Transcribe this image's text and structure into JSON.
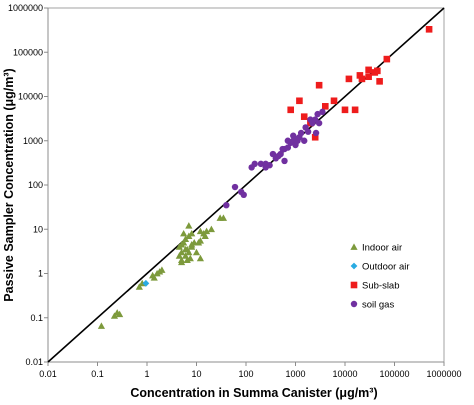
{
  "chart_data": {
    "type": "scatter",
    "xlabel": "Concentration in Summa Canister (μg/m³)",
    "ylabel": "Passive Sampler Concentration (μg/m³)",
    "x_scale": "log",
    "y_scale": "log",
    "xlim": [
      0.01,
      1000000
    ],
    "ylim": [
      0.01,
      1000000
    ],
    "x_ticks": [
      "0.01",
      "0.1",
      "1",
      "10",
      "100",
      "1000",
      "10000",
      "100000",
      "1000000"
    ],
    "y_ticks": [
      "0.01",
      "0.1",
      "1",
      "10",
      "100",
      "1000",
      "10000",
      "100000",
      "1000000"
    ],
    "grid": false,
    "legend_position": "right",
    "reference_line": {
      "type": "1:1",
      "color": "#000000"
    },
    "series": [
      {
        "name": "Indoor air",
        "marker": "triangle",
        "color": "#7d9a3c",
        "points": [
          [
            0.12,
            0.065
          ],
          [
            0.22,
            0.11
          ],
          [
            0.25,
            0.13
          ],
          [
            0.28,
            0.12
          ],
          [
            0.7,
            0.5
          ],
          [
            0.8,
            0.6
          ],
          [
            1.3,
            0.9
          ],
          [
            1.4,
            0.8
          ],
          [
            1.6,
            1.0
          ],
          [
            1.8,
            1.1
          ],
          [
            2.0,
            1.2
          ],
          [
            4.5,
            4.0
          ],
          [
            5,
            3
          ],
          [
            5,
            2
          ],
          [
            5.5,
            5
          ],
          [
            6,
            6
          ],
          [
            6,
            2.5
          ],
          [
            6.5,
            3.5
          ],
          [
            7,
            7
          ],
          [
            7,
            3
          ],
          [
            4.5,
            2.5
          ],
          [
            5,
            1.8
          ],
          [
            6.5,
            2
          ],
          [
            7.5,
            2.2
          ],
          [
            8,
            4
          ],
          [
            5.5,
            8
          ],
          [
            7,
            12
          ],
          [
            8,
            4.5
          ],
          [
            9,
            5
          ],
          [
            10,
            3
          ],
          [
            11,
            5
          ],
          [
            12,
            9
          ],
          [
            12,
            5.5
          ],
          [
            14,
            8
          ],
          [
            15,
            7
          ],
          [
            16,
            9
          ],
          [
            5,
            4.5
          ],
          [
            6,
            3.5
          ],
          [
            12,
            2.2
          ],
          [
            20,
            10
          ],
          [
            30,
            18
          ],
          [
            35,
            18
          ],
          [
            8,
            8
          ]
        ]
      },
      {
        "name": "Outdoor air",
        "marker": "diamond",
        "color": "#29abe2",
        "points": [
          [
            0.95,
            0.6
          ]
        ]
      },
      {
        "name": "Sub-slab",
        "marker": "square",
        "color": "#ee1c1c",
        "points": [
          [
            800,
            5000
          ],
          [
            1200,
            8000
          ],
          [
            1500,
            3500
          ],
          [
            2000,
            2500
          ],
          [
            2500,
            1200
          ],
          [
            3000,
            18000
          ],
          [
            4000,
            6000
          ],
          [
            6000,
            8000
          ],
          [
            10000,
            5000
          ],
          [
            12000,
            25000
          ],
          [
            16000,
            5000
          ],
          [
            20000,
            30000
          ],
          [
            22000,
            25000
          ],
          [
            30000,
            40000
          ],
          [
            30000,
            28000
          ],
          [
            40000,
            35000
          ],
          [
            45000,
            38000
          ],
          [
            50000,
            22000
          ],
          [
            70000,
            70000
          ],
          [
            500000,
            330000
          ]
        ]
      },
      {
        "name": "soil gas",
        "marker": "circle",
        "color": "#7030a0",
        "points": [
          [
            40,
            35
          ],
          [
            60,
            90
          ],
          [
            80,
            70
          ],
          [
            90,
            60
          ],
          [
            130,
            250
          ],
          [
            150,
            300
          ],
          [
            200,
            300
          ],
          [
            300,
            280
          ],
          [
            350,
            500
          ],
          [
            400,
            400
          ],
          [
            500,
            500
          ],
          [
            600,
            650
          ],
          [
            700,
            700
          ],
          [
            800,
            900
          ],
          [
            900,
            1000
          ],
          [
            1000,
            800
          ],
          [
            1200,
            1200
          ],
          [
            1300,
            1500
          ],
          [
            1500,
            1000
          ],
          [
            1600,
            2000
          ],
          [
            2000,
            3000
          ],
          [
            2200,
            2500
          ],
          [
            2500,
            3000
          ],
          [
            2800,
            4000
          ],
          [
            3000,
            2500
          ],
          [
            700,
            1000
          ],
          [
            900,
            1300
          ],
          [
            1100,
            1000
          ],
          [
            450,
            450
          ],
          [
            250,
            250
          ],
          [
            2600,
            1500
          ],
          [
            1800,
            1600
          ],
          [
            550,
            650
          ],
          [
            3500,
            4500
          ],
          [
            600,
            350
          ],
          [
            250,
            300
          ],
          [
            1100,
            1100
          ]
        ]
      }
    ]
  }
}
